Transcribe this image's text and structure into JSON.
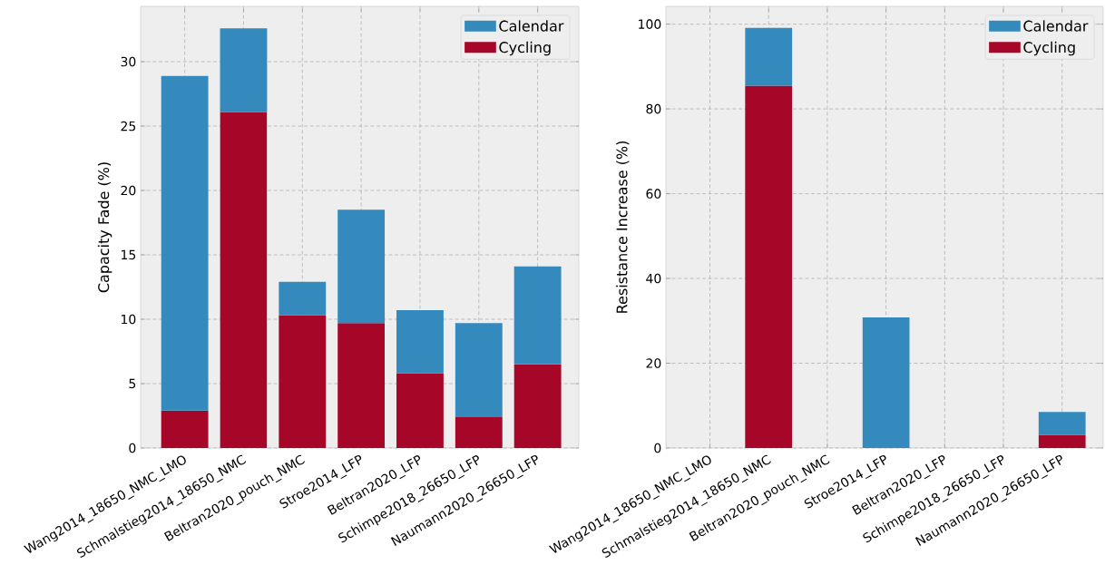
{
  "chart_data": [
    {
      "type": "bar",
      "stacked": true,
      "ylabel": "Capacity Fade (%)",
      "categories": [
        "Wang2014_18650_NMC_LMO",
        "Schmalstieg2014_18650_NMC",
        "Beltran2020_pouch_NMC",
        "Stroe2014_LFP",
        "Beltran2020_LFP",
        "Schimpe2018_26650_LFP",
        "Naumann2020_26650_LFP"
      ],
      "series": [
        {
          "name": "Cycling",
          "color": "#a60628",
          "values": [
            2.9,
            26.1,
            10.3,
            9.7,
            5.8,
            2.4,
            6.5
          ]
        },
        {
          "name": "Calendar",
          "color": "#348abd",
          "values": [
            26.0,
            6.5,
            2.6,
            8.8,
            4.9,
            7.3,
            7.6
          ]
        }
      ],
      "ylim": [
        0,
        34.3
      ],
      "yticks": [
        0,
        5,
        10,
        15,
        20,
        25,
        30
      ],
      "grid": true,
      "legend": "top right"
    },
    {
      "type": "bar",
      "stacked": true,
      "ylabel": "Resistance Increase (%)",
      "categories": [
        "Wang2014_18650_NMC_LMO",
        "Schmalstieg2014_18650_NMC",
        "Beltran2020_pouch_NMC",
        "Stroe2014_LFP",
        "Beltran2020_LFP",
        "Schimpe2018_26650_LFP",
        "Naumann2020_26650_LFP"
      ],
      "series": [
        {
          "name": "Cycling",
          "color": "#a60628",
          "values": [
            null,
            85.5,
            null,
            null,
            null,
            null,
            3.1
          ]
        },
        {
          "name": "Calendar",
          "color": "#348abd",
          "values": [
            null,
            13.6,
            null,
            30.8,
            null,
            null,
            5.4
          ]
        }
      ],
      "ylim": [
        0,
        104.2
      ],
      "yticks": [
        0,
        20,
        40,
        60,
        80,
        100
      ],
      "grid": true,
      "legend": "top right"
    }
  ]
}
